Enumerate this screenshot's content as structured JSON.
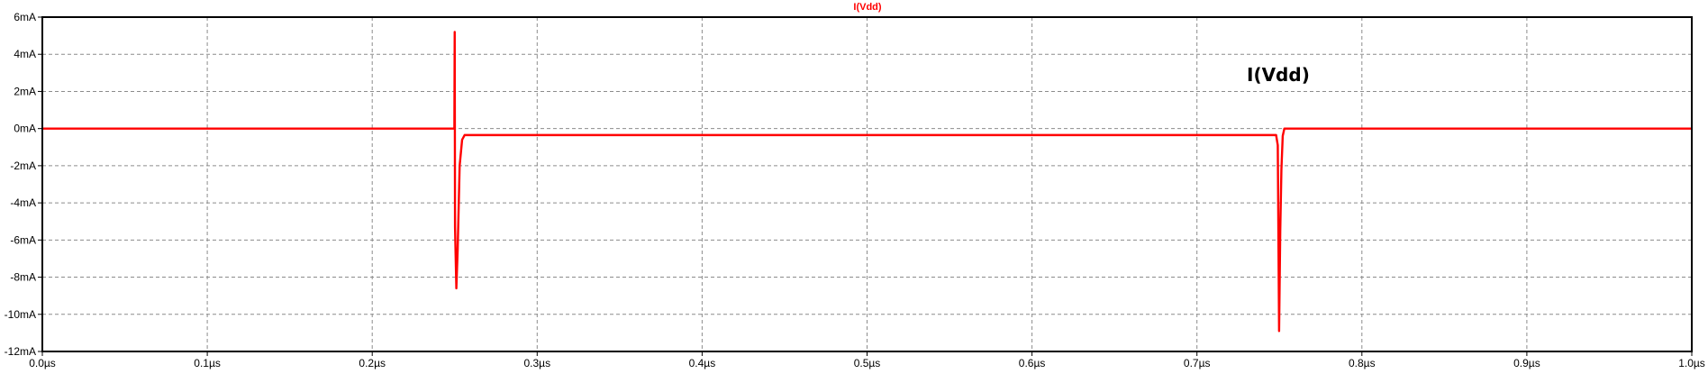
{
  "chart_data": {
    "type": "line",
    "title": "I(Vdd)",
    "annotation": "I(Vdd)",
    "x_tick_labels": [
      "0.0µs",
      "0.1µs",
      "0.2µs",
      "0.3µs",
      "0.4µs",
      "0.5µs",
      "0.6µs",
      "0.7µs",
      "0.8µs",
      "0.9µs",
      "1.0µs"
    ],
    "x_ticks": [
      0,
      0.1,
      0.2,
      0.3,
      0.4,
      0.5,
      0.6,
      0.7,
      0.8,
      0.9,
      1.0
    ],
    "y_tick_labels": [
      "6mA",
      "4mA",
      "2mA",
      "0mA",
      "-2mA",
      "-4mA",
      "-6mA",
      "-8mA",
      "-10mA",
      "-12mA"
    ],
    "y_ticks": [
      6,
      4,
      2,
      0,
      -2,
      -4,
      -6,
      -8,
      -10,
      -12
    ],
    "xlim": [
      0,
      1.0
    ],
    "ylim": [
      -12,
      6
    ],
    "x_unit": "µs",
    "y_unit": "mA",
    "grid": true,
    "series": [
      {
        "name": "I(Vdd)",
        "color": "#ff0000",
        "points": [
          [
            0.0,
            0.0
          ],
          [
            0.2498,
            0.0
          ],
          [
            0.25,
            5.2
          ],
          [
            0.2502,
            -5.3
          ],
          [
            0.251,
            -8.6
          ],
          [
            0.2518,
            -6.5
          ],
          [
            0.253,
            -2.0
          ],
          [
            0.2545,
            -0.6
          ],
          [
            0.256,
            -0.35
          ],
          [
            0.748,
            -0.35
          ],
          [
            0.749,
            -0.9
          ],
          [
            0.7498,
            -10.9
          ],
          [
            0.7505,
            -5.5
          ],
          [
            0.7512,
            -2.2
          ],
          [
            0.752,
            -0.4
          ],
          [
            0.753,
            0.0
          ],
          [
            1.0,
            0.0
          ]
        ]
      }
    ]
  }
}
